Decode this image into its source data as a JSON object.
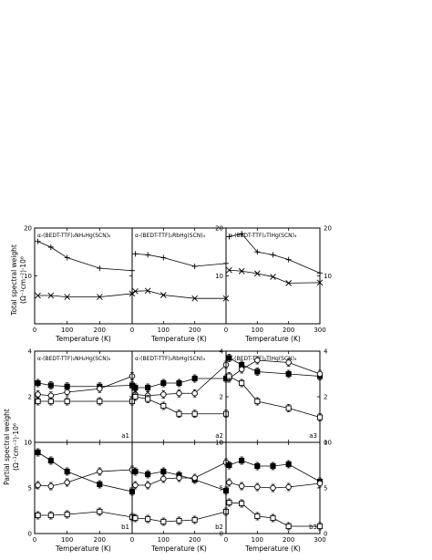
{
  "figure": {
    "top_ylabel": "Total spectral weight",
    "top_ylabel_units": "(Ω⁻¹cm⁻²)·10⁶",
    "bottom_ylabel": "Partial spectral weight",
    "bottom_ylabel_units": "(Ω⁻¹cm⁻²)·10⁶",
    "xlabel": "Temperature (K)"
  },
  "chart_data": [
    {
      "id": "top-1",
      "type": "line",
      "title": "α-(BEDT-TTF)₂NH₄Hg(SCN)₄",
      "xlim": [
        0,
        300
      ],
      "ylim": [
        0,
        20
      ],
      "xticks": [
        0,
        100,
        200
      ],
      "yticks": [
        10,
        20
      ],
      "xlabel": "Temperature (K)",
      "series": [
        {
          "marker": "plus",
          "x": [
            10,
            50,
            100,
            200,
            300
          ],
          "y": [
            17.2,
            16.0,
            13.8,
            11.6,
            11.1
          ]
        },
        {
          "marker": "cross",
          "x": [
            10,
            50,
            100,
            200,
            300
          ],
          "y": [
            5.9,
            5.9,
            5.6,
            5.6,
            6.3
          ]
        }
      ]
    },
    {
      "id": "top-2",
      "type": "line",
      "title": "α-(BEDT-TTF)₂RbHg(SCN)₄",
      "xlim": [
        0,
        300
      ],
      "ylim": [
        0,
        20
      ],
      "xticks": [
        0,
        100,
        200
      ],
      "yticks": [],
      "xlabel": "Temperature (K)",
      "series": [
        {
          "marker": "plus",
          "x": [
            10,
            50,
            100,
            200,
            300
          ],
          "y": [
            14.6,
            14.4,
            13.8,
            12.0,
            12.6
          ]
        },
        {
          "marker": "cross",
          "x": [
            10,
            50,
            100,
            200,
            300
          ],
          "y": [
            6.8,
            6.9,
            6.0,
            5.3,
            5.3
          ]
        }
      ]
    },
    {
      "id": "top-3",
      "type": "line",
      "title": "α-(BEDT-TTF)₂TlHg(SCN)₄",
      "xlim": [
        0,
        300
      ],
      "ylim": [
        0,
        20
      ],
      "xticks": [
        0,
        100,
        200,
        300
      ],
      "yticks": [
        10,
        20
      ],
      "xlabel": "Temperature (K)",
      "series": [
        {
          "marker": "plus",
          "x": [
            10,
            50,
            100,
            150,
            200,
            300
          ],
          "y": [
            18.2,
            18.8,
            15.0,
            14.4,
            13.4,
            10.6
          ]
        },
        {
          "marker": "cross",
          "x": [
            10,
            50,
            100,
            150,
            200,
            300
          ],
          "y": [
            11.2,
            11.0,
            10.5,
            9.8,
            8.5,
            8.6
          ]
        }
      ]
    },
    {
      "id": "a1",
      "type": "scatter",
      "panel_label": "a1",
      "title": "α-(BEDT-TTF)₂NH₄Hg(SCN)₄",
      "xlim": [
        0,
        300
      ],
      "ylim": [
        0,
        4
      ],
      "xticks": [
        0,
        100,
        200
      ],
      "yticks": [
        0,
        2,
        4
      ],
      "series": [
        {
          "marker": "filled-square",
          "x": [
            10,
            50,
            100,
            200,
            300
          ],
          "y": [
            2.6,
            2.5,
            2.45,
            2.45,
            2.5
          ]
        },
        {
          "marker": "open-circle",
          "x": [
            10,
            50,
            100,
            200,
            300
          ],
          "y": [
            2.1,
            2.05,
            2.2,
            2.35,
            2.9
          ]
        },
        {
          "marker": "open-square",
          "x": [
            10,
            50,
            100,
            200,
            300
          ],
          "y": [
            1.8,
            1.8,
            1.8,
            1.8,
            1.8
          ]
        }
      ]
    },
    {
      "id": "a2",
      "type": "scatter",
      "panel_label": "a2",
      "title": "α-(BEDT-TTF)₂RbHg(SCN)₄",
      "xlim": [
        0,
        300
      ],
      "ylim": [
        0,
        4
      ],
      "xticks": [
        0,
        100,
        200
      ],
      "yticks": [],
      "series": [
        {
          "marker": "filled-square",
          "x": [
            10,
            50,
            100,
            150,
            200,
            300
          ],
          "y": [
            2.4,
            2.4,
            2.6,
            2.6,
            2.8,
            2.8
          ]
        },
        {
          "marker": "open-circle",
          "x": [
            10,
            50,
            100,
            150,
            200,
            300
          ],
          "y": [
            2.1,
            2.05,
            2.1,
            2.15,
            2.15,
            3.4
          ]
        },
        {
          "marker": "open-square",
          "x": [
            10,
            50,
            100,
            150,
            200,
            300
          ],
          "y": [
            2.0,
            1.9,
            1.6,
            1.25,
            1.25,
            1.25
          ]
        }
      ]
    },
    {
      "id": "a3",
      "type": "scatter",
      "panel_label": "a3",
      "title": "α-(BEDT-TTF)₂TlHg(SCN)₄",
      "xlim": [
        0,
        300
      ],
      "ylim": [
        0,
        4
      ],
      "xticks": [
        0,
        100,
        200,
        300
      ],
      "yticks": [
        0,
        2,
        4
      ],
      "series": [
        {
          "marker": "filled-square",
          "x": [
            10,
            50,
            100,
            200,
            300
          ],
          "y": [
            3.7,
            3.4,
            3.1,
            3.0,
            2.9
          ]
        },
        {
          "marker": "open-circle",
          "x": [
            10,
            50,
            100,
            200,
            300
          ],
          "y": [
            2.8,
            3.2,
            3.6,
            3.5,
            3.0
          ]
        },
        {
          "marker": "open-square",
          "x": [
            10,
            50,
            100,
            200,
            300
          ],
          "y": [
            2.9,
            2.6,
            1.8,
            1.5,
            1.1
          ]
        }
      ]
    },
    {
      "id": "b1",
      "type": "scatter",
      "panel_label": "b1",
      "xlim": [
        0,
        300
      ],
      "ylim": [
        0,
        10
      ],
      "xticks": [
        0,
        100,
        200
      ],
      "yticks": [
        0,
        5,
        10
      ],
      "xlabel": "Temperature (K)",
      "series": [
        {
          "marker": "filled-square",
          "x": [
            10,
            50,
            100,
            200,
            300
          ],
          "y": [
            8.9,
            8.0,
            6.8,
            5.4,
            4.6
          ]
        },
        {
          "marker": "open-circle",
          "x": [
            10,
            50,
            100,
            200,
            300
          ],
          "y": [
            5.3,
            5.2,
            5.6,
            6.8,
            7.0
          ]
        },
        {
          "marker": "open-square",
          "x": [
            10,
            50,
            100,
            200,
            300
          ],
          "y": [
            2.0,
            2.0,
            2.1,
            2.4,
            1.8
          ]
        }
      ]
    },
    {
      "id": "b2",
      "type": "scatter",
      "panel_label": "b2",
      "xlim": [
        0,
        300
      ],
      "ylim": [
        0,
        10
      ],
      "xticks": [
        0,
        100,
        200
      ],
      "yticks": [],
      "xlabel": "Temperature (K)",
      "series": [
        {
          "marker": "filled-square",
          "x": [
            10,
            50,
            100,
            150,
            200,
            300
          ],
          "y": [
            6.8,
            6.5,
            6.8,
            6.4,
            5.9,
            4.7
          ]
        },
        {
          "marker": "open-circle",
          "x": [
            10,
            50,
            100,
            150,
            200,
            300
          ],
          "y": [
            5.3,
            5.3,
            6.0,
            6.1,
            6.1,
            7.8
          ]
        },
        {
          "marker": "open-square",
          "x": [
            10,
            50,
            100,
            150,
            200,
            300
          ],
          "y": [
            1.7,
            1.6,
            1.3,
            1.4,
            1.5,
            2.4
          ]
        }
      ]
    },
    {
      "id": "b3",
      "type": "scatter",
      "panel_label": "b3",
      "xlim": [
        0,
        300
      ],
      "ylim": [
        0,
        10
      ],
      "xticks": [
        0,
        100,
        200,
        300
      ],
      "yticks": [
        0,
        5,
        10
      ],
      "xlabel": "Temperature (K)",
      "series": [
        {
          "marker": "filled-square",
          "x": [
            10,
            50,
            100,
            150,
            200,
            300
          ],
          "y": [
            7.5,
            8.0,
            7.4,
            7.4,
            7.6,
            5.7
          ]
        },
        {
          "marker": "open-circle",
          "x": [
            10,
            50,
            100,
            150,
            200,
            300
          ],
          "y": [
            5.6,
            5.2,
            5.1,
            5.0,
            5.1,
            5.5
          ]
        },
        {
          "marker": "open-square",
          "x": [
            10,
            50,
            100,
            150,
            200,
            300
          ],
          "y": [
            3.4,
            3.3,
            1.9,
            1.7,
            0.8,
            0.8
          ]
        }
      ]
    }
  ]
}
